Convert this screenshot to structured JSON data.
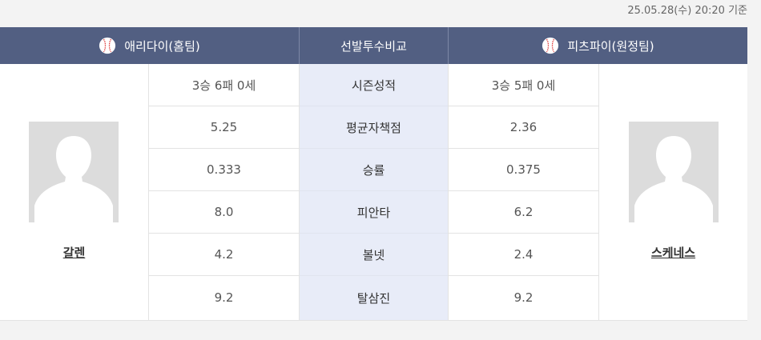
{
  "timestamp": "25.05.28(수) 20:20 기준",
  "header": {
    "home_label": "애리다이(홈팀)",
    "compare_label": "선발투수비교",
    "away_label": "피츠파이(원정팀)"
  },
  "home_player": {
    "name": "갈렌"
  },
  "away_player": {
    "name": "스케네스"
  },
  "stats": [
    {
      "label": "시즌성적",
      "home": "3승 6패 0세",
      "away": "3승 5패 0세"
    },
    {
      "label": "평균자책점",
      "home": "5.25",
      "away": "2.36"
    },
    {
      "label": "승률",
      "home": "0.333",
      "away": "0.375"
    },
    {
      "label": "피안타",
      "home": "8.0",
      "away": "6.2"
    },
    {
      "label": "볼넷",
      "home": "4.2",
      "away": "2.4"
    },
    {
      "label": "탈삼진",
      "home": "9.2",
      "away": "9.2"
    }
  ],
  "colors": {
    "header_bg": "#525f82",
    "mid_column_bg": "#e8ecf8",
    "avatar_bg": "#dcdcdc"
  },
  "icons": [
    "baseball-icon",
    "player-silhouette-icon"
  ]
}
